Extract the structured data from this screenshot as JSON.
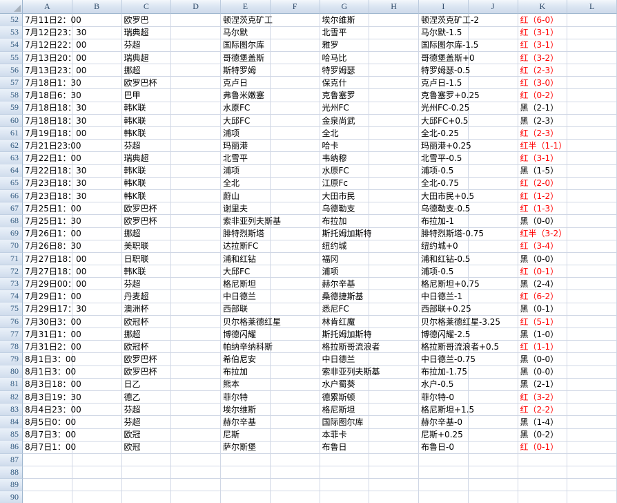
{
  "sheet": {
    "columns": [
      "A",
      "B",
      "C",
      "D",
      "E",
      "F",
      "G",
      "H",
      "I",
      "J",
      "K",
      "L"
    ],
    "first_visible_row": 52,
    "last_visible_row": 90
  },
  "colors": {
    "result_red": "#ff0000",
    "result_black": "#000000",
    "gridline": "#d0d7e5",
    "header_text": "#2f4a68",
    "row_number_text": "#31597e"
  },
  "column_field_map": {
    "A": "date",
    "C": "league",
    "E": "home",
    "G": "away",
    "I": "handicap",
    "K": "result"
  },
  "rows": [
    {
      "num": 52,
      "date": "7月11日2：00",
      "league": "欧罗巴",
      "home": "顿涅茨克矿工",
      "away": "埃尔维斯",
      "handicap": "顿涅茨克矿工-2",
      "result": "红（6-0）",
      "result_color": "red"
    },
    {
      "num": 53,
      "date": "7月12日23：30",
      "league": "瑞典超",
      "home": "马尔默",
      "away": "北雪平",
      "handicap": "马尔默-1.5",
      "result": "红（3-1）",
      "result_color": "red"
    },
    {
      "num": 54,
      "date": "7月12日22：00",
      "league": "芬超",
      "home": "国际图尔库",
      "away": "雅罗",
      "handicap": "国际图尔库-1.5",
      "result": "红（3-1）",
      "result_color": "red"
    },
    {
      "num": 55,
      "date": "7月13日20：00",
      "league": "瑞典超",
      "home": "哥德堡盖斯",
      "away": "哈马比",
      "handicap": "哥德堡盖斯+0",
      "result": "红（3-2）",
      "result_color": "red"
    },
    {
      "num": 56,
      "date": "7月13日23：00",
      "league": "挪超",
      "home": "斯特罗姆",
      "away": "特罗姆瑟",
      "handicap": "特罗姆瑟-0.5",
      "result": "红（2-3）",
      "result_color": "red"
    },
    {
      "num": 57,
      "date": "7月18日1：30",
      "league": "欧罗巴杯",
      "home": "克卢日",
      "away": "保克什",
      "handicap": "克卢日-1.5",
      "result": "红（3-0）",
      "result_color": "red"
    },
    {
      "num": 58,
      "date": "7月18日6：30",
      "league": "巴甲",
      "home": "弗鲁米嫩塞",
      "away": "克鲁塞罗",
      "handicap": "克鲁塞罗+0.25",
      "result": "红（0-2）",
      "result_color": "red"
    },
    {
      "num": 59,
      "date": "7月18日18：30",
      "league": "韩K联",
      "home": "水原FC",
      "away": "光州FC",
      "handicap": "光州FC-0.25",
      "result": "黑（2-1）",
      "result_color": "black"
    },
    {
      "num": 60,
      "date": "7月18日18：30",
      "league": "韩K联",
      "home": "大邱FC",
      "away": "金泉尚武",
      "handicap": "大邱FC+0.5",
      "result": "黑（2-3）",
      "result_color": "black"
    },
    {
      "num": 61,
      "date": "7月19日18：00",
      "league": "韩K联",
      "home": "浦项",
      "away": "全北",
      "handicap": "全北-0.25",
      "result": "红（2-3）",
      "result_color": "red"
    },
    {
      "num": 62,
      "date": "7月21日23:00",
      "league": "芬超",
      "home": "玛丽港",
      "away": "哈卡",
      "handicap": "玛丽港+0.25",
      "result": "红半（1-1）",
      "result_color": "red"
    },
    {
      "num": 63,
      "date": "7月22日1：00",
      "league": "瑞典超",
      "home": "北雪平",
      "away": "韦纳穆",
      "handicap": "北雪平-0.5",
      "result": "红（3-1）",
      "result_color": "red"
    },
    {
      "num": 64,
      "date": "7月22日18：30",
      "league": "韩K联",
      "home": "浦项",
      "away": "水原FC",
      "handicap": "浦项-0.5",
      "result": "黑（1-5）",
      "result_color": "black"
    },
    {
      "num": 65,
      "date": "7月23日18：30",
      "league": "韩K联",
      "home": "全北",
      "away": "江原Fc",
      "handicap": "全北-0.75",
      "result": "红（2-0）",
      "result_color": "red"
    },
    {
      "num": 66,
      "date": "7月23日18：30",
      "league": "韩K联",
      "home": "蔚山",
      "away": "大田市民",
      "handicap": "大田市民+0.5",
      "result": "红（1-2）",
      "result_color": "red"
    },
    {
      "num": 67,
      "date": "7月25日1：00",
      "league": "欧罗巴杯",
      "home": "谢里夫",
      "away": "乌德勒支",
      "handicap": "乌德勒支-0.5",
      "result": "红（1-3）",
      "result_color": "red"
    },
    {
      "num": 68,
      "date": "7月25日1：30",
      "league": "欧罗巴杯",
      "home": "索非亚列夫斯基",
      "away": "布拉加",
      "handicap": "布拉加-1",
      "result": "黑（0-0）",
      "result_color": "black"
    },
    {
      "num": 69,
      "date": "7月26日1：00",
      "league": "挪超",
      "home": "腓特烈斯塔",
      "away": "斯托姆加斯特",
      "handicap": "腓特烈斯塔-0.75",
      "result": "红半（3-2）",
      "result_color": "red"
    },
    {
      "num": 70,
      "date": "7月26日8：30",
      "league": "美职联",
      "home": "达拉斯FC",
      "away": "纽约城",
      "handicap": "纽约城+0",
      "result": "红（3-4）",
      "result_color": "red"
    },
    {
      "num": 71,
      "date": "7月27日18：00",
      "league": "日职联",
      "home": "浦和红钻",
      "away": "福冈",
      "handicap": "浦和红钻-0.5",
      "result": "黑（0-0）",
      "result_color": "black"
    },
    {
      "num": 72,
      "date": "7月27日18：00",
      "league": "韩K联",
      "home": "大邱FC",
      "away": "浦项",
      "handicap": "浦项-0.5",
      "result": "红（0-1）",
      "result_color": "red"
    },
    {
      "num": 73,
      "date": "7月29日00：00",
      "league": "芬超",
      "home": "格尼斯坦",
      "away": "赫尔辛基",
      "handicap": "格尼斯坦+0.75",
      "result": "黑（2-4）",
      "result_color": "black"
    },
    {
      "num": 74,
      "date": "7月29日1：00",
      "league": "丹麦超",
      "home": "中日德兰",
      "away": "桑德捷斯基",
      "handicap": "中日德兰-1",
      "result": "红（6-2）",
      "result_color": "red"
    },
    {
      "num": 75,
      "date": "7月29日17：30",
      "league": "澳洲杯",
      "home": "西部联",
      "away": "悉尼FC",
      "handicap": "西部联+0.25",
      "result": "黑（0-1）",
      "result_color": "black"
    },
    {
      "num": 76,
      "date": "7月30日3：00",
      "league": "欧冠杯",
      "home": "贝尔格莱德红星",
      "away": "林肯红魔",
      "handicap": "贝尔格莱德红星-3.25",
      "result": "红（5-1）",
      "result_color": "red"
    },
    {
      "num": 77,
      "date": "7月31日1：00",
      "league": "挪超",
      "home": "博德闪耀",
      "away": "斯托姆加斯特",
      "handicap": "博德闪耀-2.5",
      "result": "黑（1-0）",
      "result_color": "black"
    },
    {
      "num": 78,
      "date": "7月31日2：00",
      "league": "欧冠杯",
      "home": "帕纳辛纳科斯",
      "away": "格拉斯哥流浪者",
      "handicap": "格拉斯哥流浪者+0.5",
      "result": "红（1-1）",
      "result_color": "red"
    },
    {
      "num": 79,
      "date": "8月1日3：00",
      "league": "欧罗巴杯",
      "home": "希伯尼安",
      "away": "中日德兰",
      "handicap": "中日德兰-0.75",
      "result": "黑（0-0）",
      "result_color": "black"
    },
    {
      "num": 80,
      "date": "8月1日3：00",
      "league": "欧罗巴杯",
      "home": "布拉加",
      "away": "索非亚列夫斯基",
      "handicap": "布拉加-1.75",
      "result": "黑（0-0）",
      "result_color": "black"
    },
    {
      "num": 81,
      "date": "8月3日18：00",
      "league": "日乙",
      "home": "熊本",
      "away": "水户蜀葵",
      "handicap": "水户-0.5",
      "result": "黑（2-1）",
      "result_color": "black"
    },
    {
      "num": 82,
      "date": "8月3日19：30",
      "league": "德乙",
      "home": "菲尔特",
      "away": "德累斯顿",
      "handicap": "菲尔特-0",
      "result": "红（3-2）",
      "result_color": "red"
    },
    {
      "num": 83,
      "date": "8月4日23：00",
      "league": "芬超",
      "home": "埃尔维斯",
      "away": "格尼斯坦",
      "handicap": "格尼斯坦+1.5",
      "result": "红（2-2）",
      "result_color": "red"
    },
    {
      "num": 84,
      "date": "8月5日0：00",
      "league": "芬超",
      "home": "赫尔辛基",
      "away": "国际图尔库",
      "handicap": "赫尔辛基-0",
      "result": "黑（1-4）",
      "result_color": "black"
    },
    {
      "num": 85,
      "date": "8月7日3：00",
      "league": "欧冠",
      "home": "尼斯",
      "away": "本菲卡",
      "handicap": "尼斯+0.25",
      "result": "黑（0-2）",
      "result_color": "black"
    },
    {
      "num": 86,
      "date": "8月7日1：00",
      "league": "欧冠",
      "home": "萨尔斯堡",
      "away": "布鲁日",
      "handicap": "布鲁日-0",
      "result": "红（0-1）",
      "result_color": "red"
    },
    {
      "num": 87
    },
    {
      "num": 88
    },
    {
      "num": 89
    },
    {
      "num": 90
    }
  ]
}
